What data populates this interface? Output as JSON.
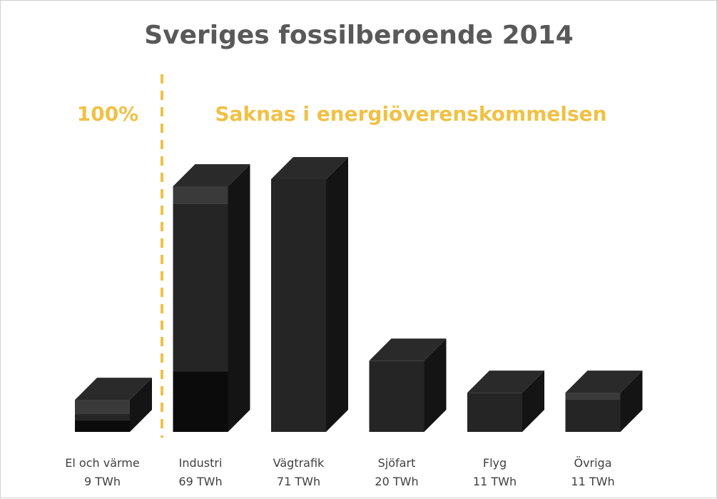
{
  "chart_data": {
    "type": "bar",
    "title": "Sveriges fossilberoende 2014",
    "categories": [
      "El och värme",
      "Industri",
      "Vägtrafik",
      "Sjöfart",
      "Flyg",
      "Övriga"
    ],
    "value_labels": [
      "9 TWh",
      "69 TWh",
      "71 TWh",
      "20 TWh",
      "11 TWh",
      "11 TWh"
    ],
    "series": [
      {
        "values": [
          9,
          69,
          71,
          20,
          11,
          11
        ]
      }
    ],
    "annotations": {
      "left": "100%",
      "right": "Saknas i energiöverenskommelsen"
    },
    "ylim": [
      0,
      71
    ],
    "grid": false,
    "colors": {
      "accent": "#f0c146",
      "title": "#595959",
      "bar_front": "#252525",
      "bar_side": "#141414",
      "bar_top": "#2a2a2a",
      "bar_bottom_band": "#0b0b0b",
      "bar_upper_band": "#3a3a3a"
    }
  }
}
